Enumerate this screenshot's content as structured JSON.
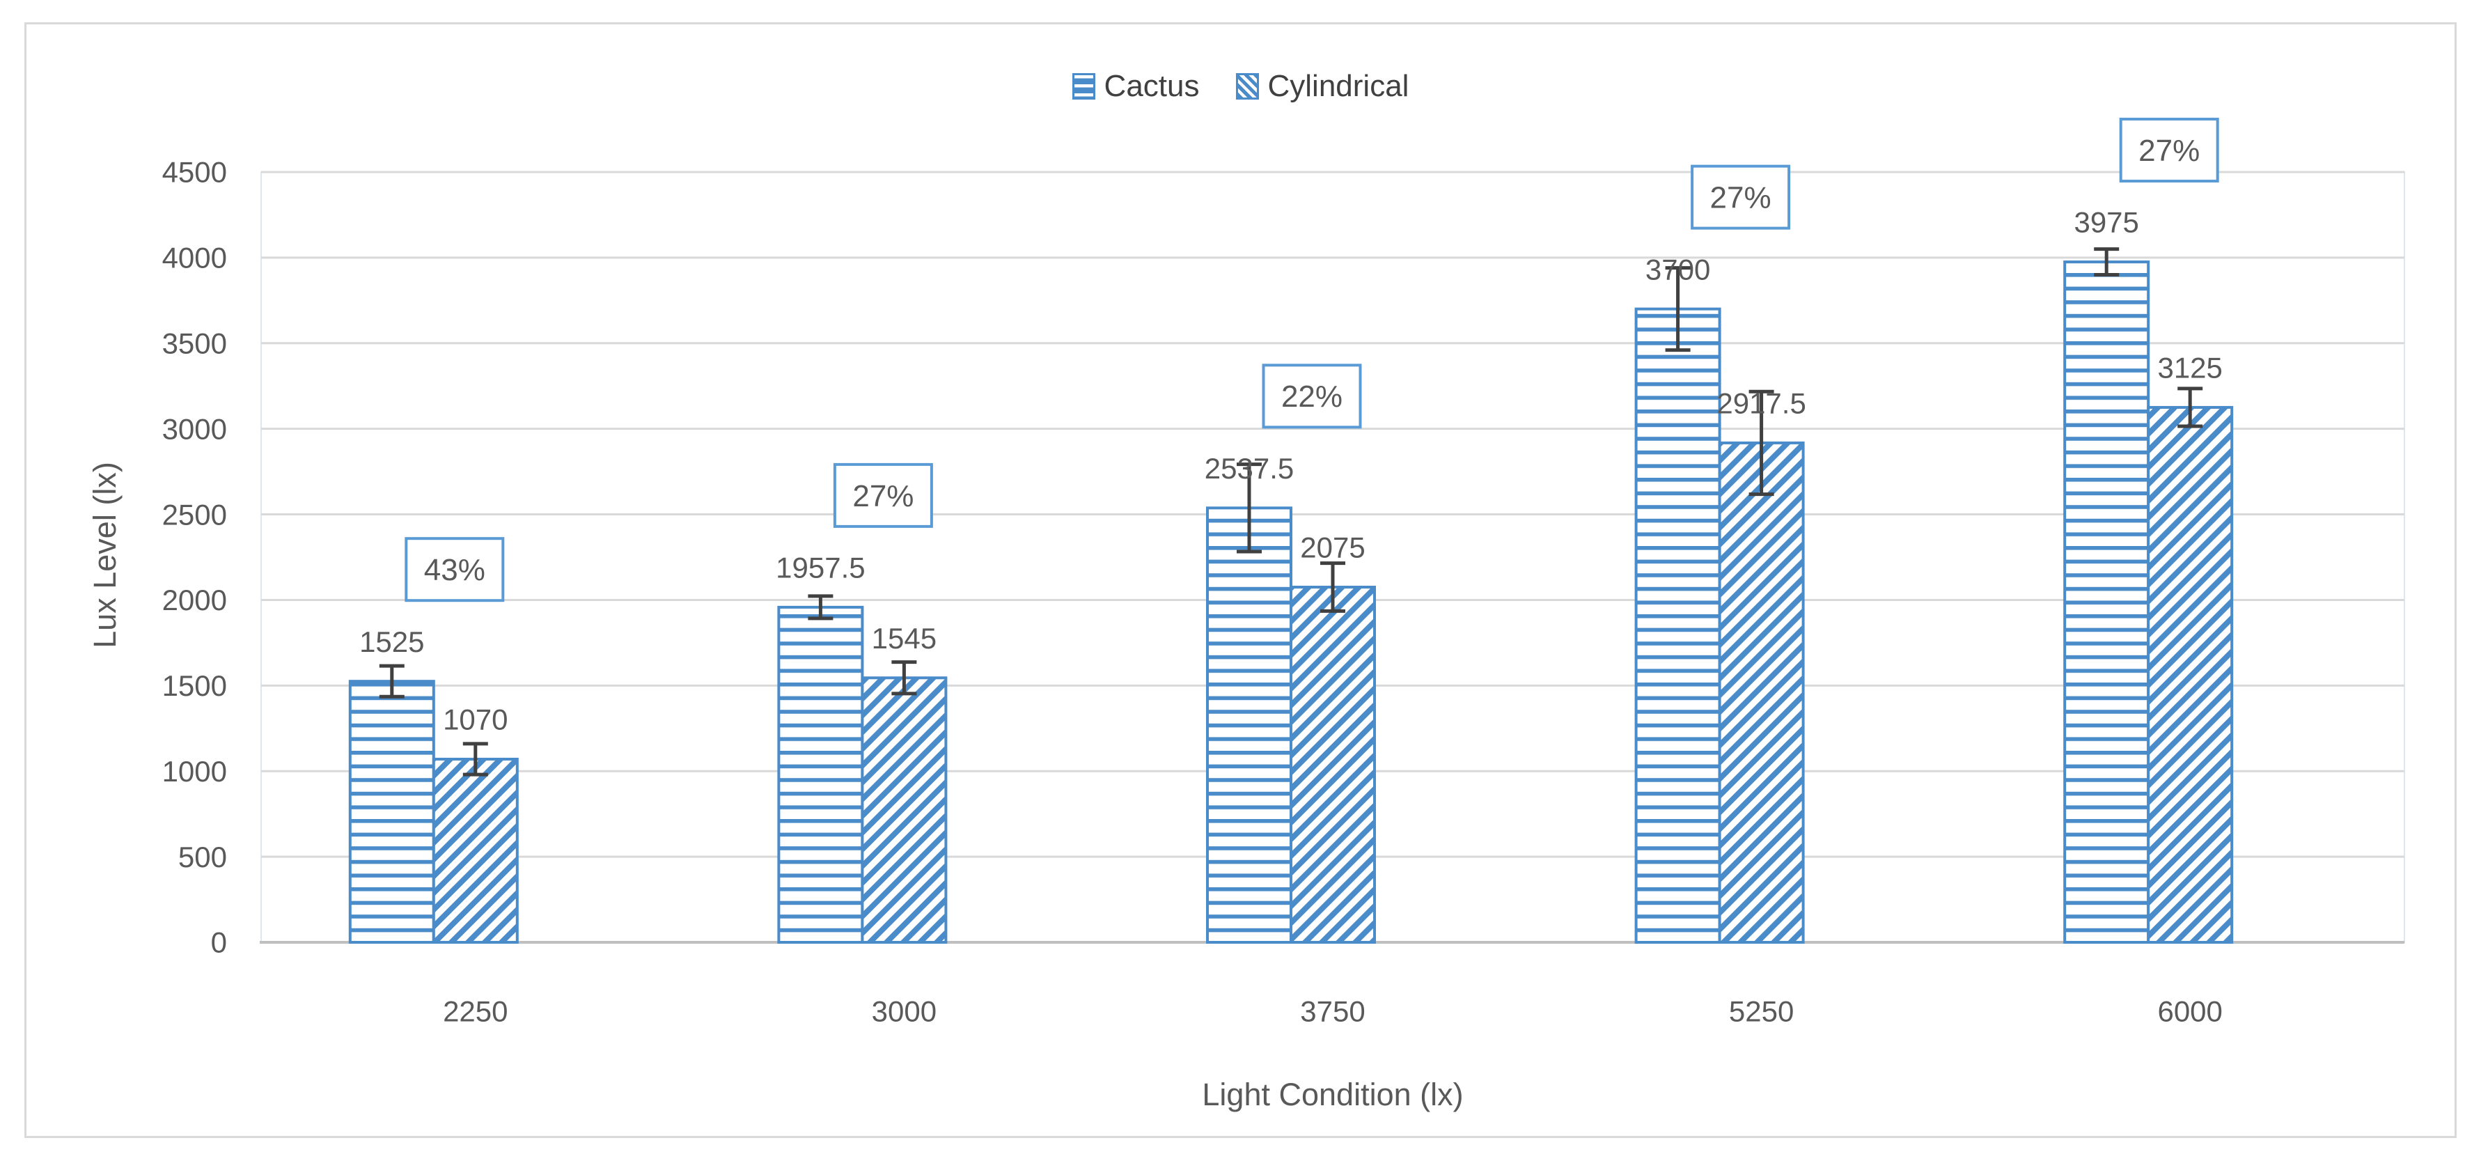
{
  "chart_data": {
    "type": "bar",
    "title": "",
    "xlabel": "Light Condition (lx)",
    "ylabel": "Lux Level (lx)",
    "categories": [
      "2250",
      "3000",
      "3750",
      "5250",
      "6000"
    ],
    "series": [
      {
        "name": "Cactus",
        "pattern": "horizontal-stripes",
        "values": [
          1525,
          1957.5,
          2537.5,
          3700,
          3975
        ],
        "error_bars": [
          90,
          65,
          255,
          240,
          75
        ]
      },
      {
        "name": "Cylindrical",
        "pattern": "diagonal-stripes",
        "values": [
          1070,
          1545,
          2075,
          2917.5,
          3125
        ],
        "error_bars": [
          90,
          92,
          140,
          300,
          110
        ]
      }
    ],
    "percent_labels": [
      "43%",
      "27%",
      "22%",
      "27%",
      "27%"
    ],
    "ylim": [
      0,
      4500
    ],
    "ytick_interval": 500,
    "ytick_labels": [
      "0",
      "500",
      "1000",
      "1500",
      "2000",
      "2500",
      "3000",
      "3500",
      "4000",
      "4500"
    ],
    "grid": true,
    "legend_position": "top"
  },
  "colors": {
    "bar_blue": "#4a8bc9",
    "accent_blue": "#5B9BD5",
    "text": "#595959",
    "legend_text": "#404040",
    "error_bar": "#404040",
    "gridline": "#D9D9D9",
    "axis_line": "#BFBFBF",
    "plot_border": "#dde7f3",
    "chart_border": "#D9D9D9"
  }
}
